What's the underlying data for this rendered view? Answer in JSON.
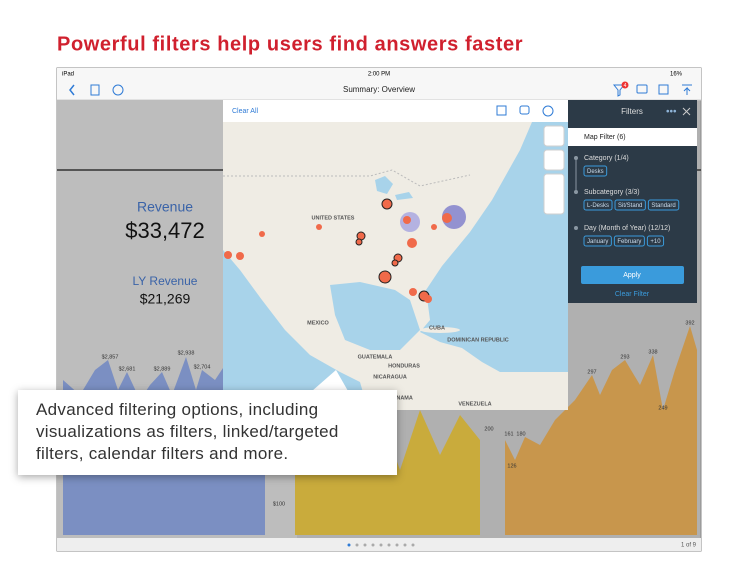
{
  "headline": "Powerful filters help users find answers faster",
  "status_bar": {
    "device": "iPad",
    "time": "2:00 PM",
    "battery": "16%"
  },
  "nav": {
    "title": "Summary: Overview",
    "badge": "4"
  },
  "kpis": [
    {
      "label": "Revenue",
      "value": "$33,472"
    },
    {
      "label": "LY Revenue",
      "value": "$21,269"
    }
  ],
  "map": {
    "clear_all": "Clear All",
    "labels": [
      "UNITED STATES",
      "MEXICO",
      "CUBA",
      "GUATEMALA",
      "HONDURAS",
      "NICARAGUA",
      "PANAMA",
      "VENEZUELA",
      "DOMINICAN REPUBLIC"
    ]
  },
  "filters": {
    "title": "Filters",
    "map_filter": "Map Filter (6)",
    "sections": [
      {
        "title": "Category (1/4)",
        "chips": [
          "Desks"
        ]
      },
      {
        "title": "Subcategory (3/3)",
        "chips": [
          "L-Desks",
          "Sit/Stand",
          "Standard"
        ]
      },
      {
        "title": "Day (Month of Year) (12/12)",
        "chips": [
          "January",
          "February",
          "+10"
        ]
      }
    ],
    "apply": "Apply",
    "clear": "Clear Filter"
  },
  "callout": "Advanced filtering options, including visualizations as filters, linked/targeted filters, calendar filters and more.",
  "chart_labels": [
    "$2,857",
    "$2,681",
    "$2,889",
    "$2,938",
    "$2,704",
    "$100",
    "200",
    "161",
    "180",
    "126",
    "297",
    "293",
    "338",
    "392",
    "249"
  ],
  "pager": "1 of 9"
}
